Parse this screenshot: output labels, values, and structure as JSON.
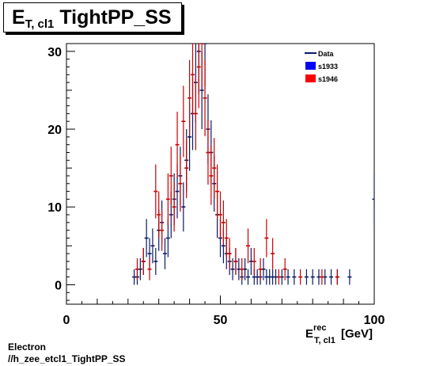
{
  "title": {
    "main": "E",
    "sub": "T, cl1",
    "rest": " TightPP_SS"
  },
  "footer": {
    "line1": "Electron",
    "line2": "//h_zee_etcl1_TightPP_SS"
  },
  "chart_data": {
    "type": "scatter",
    "title": "E_{T, cl1} TightPP_SS",
    "xlabel_main": "E",
    "xlabel_sup": "rec",
    "xlabel_sub": "T, cl1",
    "xlabel_unit": "[GeV]",
    "xlim": [
      0,
      100
    ],
    "ylim": [
      -2.5,
      31
    ],
    "xticks": [
      0,
      50,
      100
    ],
    "yticks": [
      0,
      10,
      20,
      30
    ],
    "legend": {
      "placement": "top-right",
      "entries": [
        {
          "label": "Data",
          "marker": "line",
          "color": "#0a1a66"
        },
        {
          "label": "s1933",
          "marker": "box",
          "color": "#0000ff"
        },
        {
          "label": "s1946",
          "marker": "box",
          "color": "#ff0000"
        }
      ]
    },
    "series": [
      {
        "name": "s1933",
        "color": "#0a1a66",
        "x": [
          22,
          23,
          24,
          25,
          26,
          27,
          28,
          29,
          30,
          31,
          32,
          33,
          34,
          35,
          36,
          37,
          38,
          39,
          40,
          41,
          42,
          43,
          44,
          45,
          46,
          47,
          48,
          49,
          50,
          51,
          52,
          53,
          54,
          55,
          56,
          57,
          58,
          59,
          60,
          61,
          62,
          63,
          64,
          65,
          66,
          67,
          68,
          70,
          72,
          74,
          78,
          80,
          82,
          84,
          86,
          88,
          92,
          100
        ],
        "y": [
          1,
          1,
          2,
          3,
          6,
          4,
          5,
          3,
          7,
          8,
          4,
          6,
          9,
          11,
          12,
          14,
          10,
          16,
          19,
          22,
          26,
          30,
          25,
          31,
          20,
          17,
          13,
          9,
          6,
          5,
          4,
          3,
          2,
          3,
          2,
          1,
          2,
          1,
          3,
          1,
          1,
          1,
          2,
          1,
          1,
          1,
          1,
          1,
          1,
          1,
          1,
          1,
          1,
          1,
          1,
          1,
          1,
          11
        ]
      },
      {
        "name": "s1946",
        "color": "#cc0000",
        "x": [
          23,
          25,
          27,
          29,
          30,
          31,
          33,
          34,
          35,
          36,
          37,
          38,
          39,
          40,
          41,
          42,
          43,
          44,
          45,
          46,
          47,
          48,
          49,
          50,
          51,
          52,
          53,
          55,
          57,
          59,
          61,
          63,
          65,
          67,
          69,
          71,
          76,
          83,
          88
        ],
        "y": [
          2,
          3,
          2,
          12,
          9,
          7,
          11,
          14,
          10,
          18,
          13,
          21,
          15,
          24,
          27,
          22,
          28,
          31,
          24,
          17,
          14,
          15,
          12,
          9,
          8,
          6,
          4,
          3,
          2,
          5,
          3,
          2,
          6,
          4,
          1,
          2,
          1,
          1,
          1
        ]
      }
    ]
  }
}
